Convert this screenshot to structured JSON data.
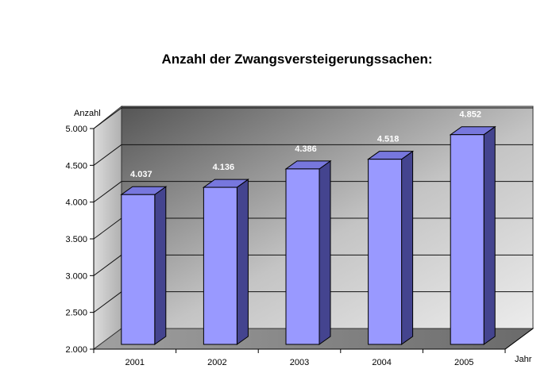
{
  "chart_data": {
    "type": "bar",
    "title": "Anzahl der Zwangsversteigerungssachen:",
    "xlabel": "Jahr",
    "ylabel": "Anzahl",
    "categories": [
      "2001",
      "2002",
      "2003",
      "2004",
      "2005"
    ],
    "values": [
      4037,
      4136,
      4386,
      4518,
      4852
    ],
    "value_labels": [
      "4.037",
      "4.136",
      "4.386",
      "4.518",
      "4.852"
    ],
    "ylim": [
      2000,
      5000
    ],
    "yticks": [
      2000,
      2500,
      3000,
      3500,
      4000,
      4500,
      5000
    ],
    "ytick_labels": [
      "2.000",
      "2.500",
      "3.000",
      "3.500",
      "4.000",
      "4.500",
      "5.000"
    ],
    "grid": true,
    "legend": "none",
    "style": "3d",
    "colors": {
      "bar_front": "#9999ff",
      "bar_top": "#7777dd",
      "bar_side": "#44448f",
      "wall_dark": "#555555",
      "wall_light": "#eeeeee",
      "floor": "#808080"
    }
  }
}
